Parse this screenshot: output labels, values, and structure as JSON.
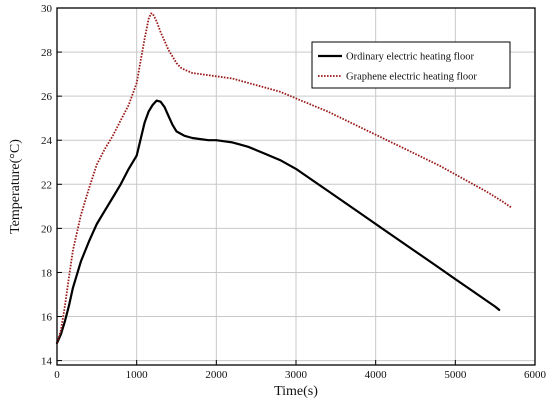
{
  "chart_data": {
    "type": "line",
    "xlabel": "Time(s)",
    "ylabel": "Temperature(°C)",
    "xlim": [
      0,
      6000
    ],
    "ylim": [
      13.8,
      30
    ],
    "xticks": [
      0,
      1000,
      2000,
      3000,
      4000,
      5000,
      6000
    ],
    "yticks": [
      14,
      16,
      18,
      20,
      22,
      24,
      26,
      28,
      30
    ],
    "grid": true,
    "legend_position": "top-right",
    "series": [
      {
        "name": "Ordinary electric heating floor",
        "color": "#000000",
        "style": "solid",
        "x": [
          0,
          50,
          100,
          150,
          200,
          300,
          400,
          500,
          600,
          700,
          800,
          900,
          1000,
          1100,
          1150,
          1200,
          1250,
          1300,
          1350,
          1400,
          1450,
          1500,
          1550,
          1600,
          1700,
          1800,
          1900,
          2000,
          2100,
          2200,
          2300,
          2400,
          2500,
          2600,
          2700,
          2800,
          3000,
          3200,
          3400,
          3600,
          3800,
          4000,
          4200,
          4400,
          4600,
          4800,
          5000,
          5200,
          5400,
          5500,
          5550
        ],
        "y": [
          14.8,
          15.2,
          15.8,
          16.5,
          17.3,
          18.5,
          19.4,
          20.2,
          20.8,
          21.4,
          22.0,
          22.7,
          23.3,
          24.8,
          25.3,
          25.6,
          25.8,
          25.75,
          25.5,
          25.1,
          24.7,
          24.4,
          24.3,
          24.2,
          24.1,
          24.05,
          24.0,
          24.0,
          23.95,
          23.9,
          23.8,
          23.7,
          23.55,
          23.4,
          23.25,
          23.1,
          22.7,
          22.2,
          21.7,
          21.2,
          20.7,
          20.2,
          19.7,
          19.2,
          18.7,
          18.2,
          17.7,
          17.2,
          16.7,
          16.45,
          16.3
        ]
      },
      {
        "name": "Graphene electric heating floor",
        "color": "#9a1a1a",
        "style": "dotted",
        "x": [
          0,
          50,
          100,
          150,
          200,
          250,
          300,
          400,
          500,
          600,
          700,
          800,
          900,
          1000,
          1050,
          1100,
          1150,
          1180,
          1200,
          1250,
          1300,
          1350,
          1400,
          1450,
          1500,
          1550,
          1600,
          1700,
          1800,
          2000,
          2200,
          2400,
          2600,
          2800,
          3000,
          3200,
          3400,
          3600,
          3800,
          4000,
          4200,
          4400,
          4600,
          4800,
          5000,
          5200,
          5400,
          5600,
          5700
        ],
        "y": [
          14.8,
          15.4,
          16.5,
          17.8,
          19.0,
          19.8,
          20.6,
          21.8,
          22.9,
          23.6,
          24.2,
          24.9,
          25.6,
          26.6,
          27.6,
          28.6,
          29.5,
          29.75,
          29.75,
          29.4,
          28.9,
          28.5,
          28.1,
          27.8,
          27.5,
          27.3,
          27.2,
          27.05,
          27.0,
          26.9,
          26.8,
          26.6,
          26.4,
          26.2,
          25.9,
          25.6,
          25.3,
          24.95,
          24.6,
          24.25,
          23.9,
          23.55,
          23.2,
          22.85,
          22.45,
          22.05,
          21.65,
          21.2,
          20.95
        ]
      }
    ]
  }
}
